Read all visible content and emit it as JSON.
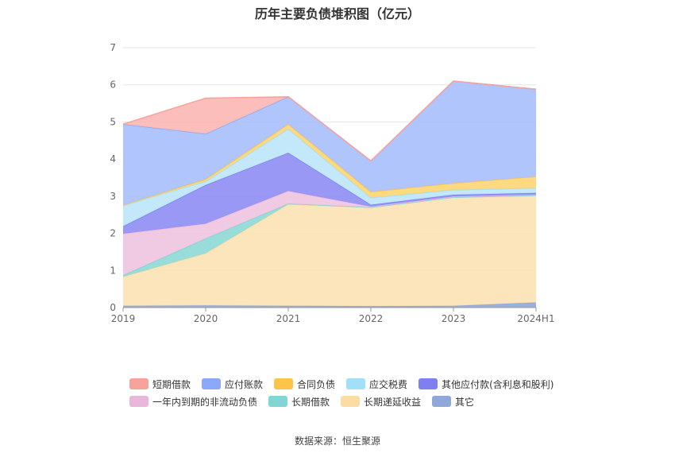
{
  "page": {
    "title": "历年主要负债堆积图（亿元）",
    "source": "数据来源：恒生聚源"
  },
  "chart_data": {
    "type": "area",
    "stacked": true,
    "title": "历年主要负债堆积图（亿元）",
    "xlabel": "",
    "ylabel": "",
    "x": [
      "2019",
      "2020",
      "2021",
      "2022",
      "2023",
      "2024H1"
    ],
    "ylim": [
      0,
      7
    ],
    "yticks": [
      "0",
      "1",
      "2",
      "3",
      "4",
      "5",
      "6",
      "7"
    ],
    "grid": true,
    "legend_position": "bottom",
    "series": [
      {
        "name": "其它",
        "color": "#8fa8d8",
        "values": [
          0.05,
          0.06,
          0.05,
          0.04,
          0.05,
          0.14
        ]
      },
      {
        "name": "长期递延收益",
        "color": "#fde2b4",
        "values": [
          0.78,
          1.4,
          2.73,
          2.66,
          2.92,
          2.88
        ]
      },
      {
        "name": "长期借款",
        "color": "#8dd9d6",
        "values": [
          0.04,
          0.4,
          0.02,
          0.0,
          0.0,
          0.0
        ]
      },
      {
        "name": "一年内到期的非流动负债",
        "color": "#eec3e0",
        "values": [
          1.12,
          0.4,
          0.34,
          0.02,
          0.02,
          0.02
        ]
      },
      {
        "name": "其他应付款(含利息和股利)",
        "color": "#8e8ef4",
        "values": [
          0.2,
          1.04,
          1.03,
          0.05,
          0.05,
          0.05
        ]
      },
      {
        "name": "应交税费",
        "color": "#bce6f8",
        "values": [
          0.56,
          0.1,
          0.64,
          0.19,
          0.13,
          0.13
        ]
      },
      {
        "name": "合同负债",
        "color": "#fdd573",
        "values": [
          0.01,
          0.06,
          0.13,
          0.16,
          0.18,
          0.31
        ]
      },
      {
        "name": "应付账款",
        "color": "#a8bffd",
        "values": [
          2.18,
          1.22,
          0.74,
          0.83,
          2.75,
          2.35
        ]
      },
      {
        "name": "短期借款",
        "color": "#fbb7b3",
        "values": [
          0.0,
          0.96,
          0.0,
          0.0,
          0.0,
          0.0
        ]
      }
    ],
    "legend_order": [
      "短期借款",
      "应付账款",
      "合同负债",
      "应交税费",
      "其他应付款(含利息和股利)",
      "一年内到期的非流动负债",
      "长期借款",
      "长期递延收益",
      "其它"
    ],
    "legend_colors": {
      "短期借款": "#f8a29c",
      "应付账款": "#8da8f8",
      "合同负债": "#fcc54a",
      "应交税费": "#a3e0f8",
      "其他应付款(含利息和股利)": "#7f7ff0",
      "一年内到期的非流动负债": "#eab7dc",
      "长期借款": "#7fd6d2",
      "长期递延收益": "#fddca3",
      "其它": "#8fa8d8"
    }
  }
}
